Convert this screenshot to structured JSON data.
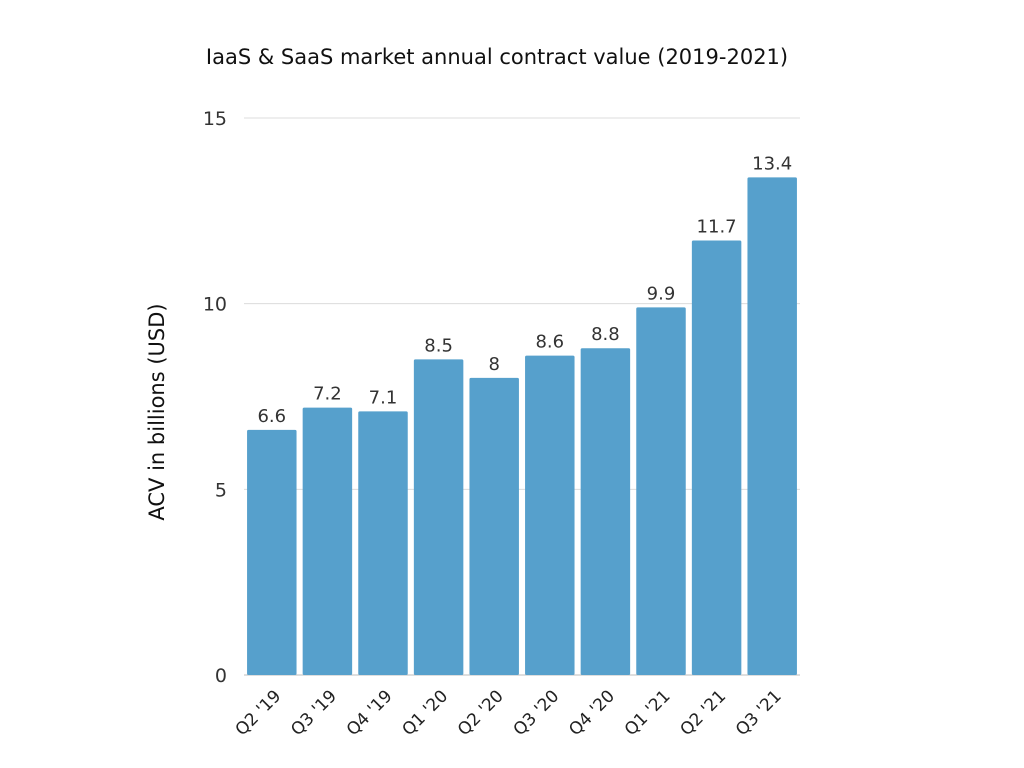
{
  "chart_data": {
    "type": "bar",
    "title": "IaaS & SaaS market annual contract value (2019-2021)",
    "xlabel": "",
    "ylabel": "ACV in billions (USD)",
    "categories": [
      "Q2 '19",
      "Q3 '19",
      "Q4 '19",
      "Q1 '20",
      "Q2 '20",
      "Q3 '20",
      "Q4 '20",
      "Q1 '21",
      "Q2 '21",
      "Q3 '21"
    ],
    "values": [
      6.6,
      7.2,
      7.1,
      8.5,
      8,
      8.6,
      8.8,
      9.9,
      11.7,
      13.4
    ],
    "value_labels": [
      "6.6",
      "7.2",
      "7.1",
      "8.5",
      "8",
      "8.6",
      "8.8",
      "9.9",
      "11.7",
      "13.4"
    ],
    "ylim": [
      0,
      15
    ],
    "yticks": [
      0,
      5,
      10,
      15
    ],
    "ytick_labels": [
      "0",
      "5",
      "10",
      "15"
    ],
    "grid": true,
    "legend": "none",
    "bar_color": "#56a0cc"
  }
}
